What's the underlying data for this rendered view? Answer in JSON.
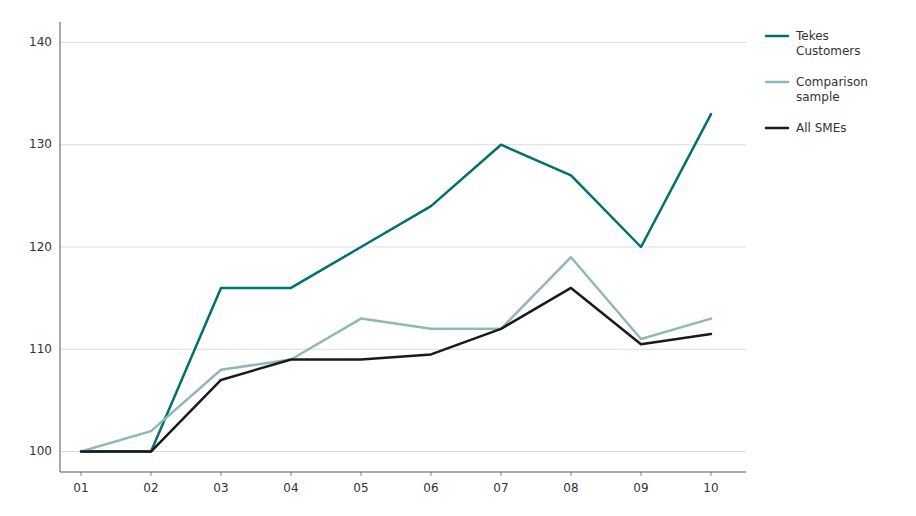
{
  "chart_data": {
    "type": "line",
    "x": [
      1,
      2,
      3,
      4,
      5,
      6,
      7,
      8,
      9,
      10
    ],
    "xlim": [
      0.7,
      10.5
    ],
    "xticks": [
      {
        "value": 1,
        "label": "01"
      },
      {
        "value": 2,
        "label": "02"
      },
      {
        "value": 3,
        "label": "03"
      },
      {
        "value": 4,
        "label": "04"
      },
      {
        "value": 5,
        "label": "05"
      },
      {
        "value": 6,
        "label": "06"
      },
      {
        "value": 7,
        "label": "07"
      },
      {
        "value": 8,
        "label": "08"
      },
      {
        "value": 9,
        "label": "09"
      },
      {
        "value": 10,
        "label": "10"
      }
    ],
    "ylim": [
      98,
      142
    ],
    "yticks": [
      100,
      110,
      120,
      130,
      140
    ],
    "grid": true,
    "legend": "upper right",
    "series": [
      {
        "name": "Tekes\nCustomers",
        "color": "#007070",
        "values": [
          100,
          100,
          116,
          116,
          120,
          124,
          130,
          127,
          120,
          133
        ]
      },
      {
        "name": "Comparison\nsample",
        "color": "#90b8b8",
        "values": [
          100,
          102,
          108,
          109,
          113,
          112,
          112,
          119,
          111,
          113
        ]
      },
      {
        "name": "All SMEs",
        "color": "#1a1a1a",
        "values": [
          100,
          100,
          107,
          109,
          109,
          109.5,
          112,
          116,
          110.5,
          111.5
        ]
      }
    ]
  }
}
